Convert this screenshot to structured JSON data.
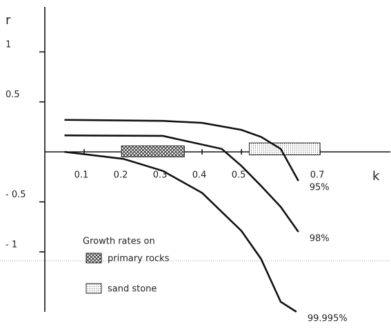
{
  "chart_data": {
    "type": "line",
    "xlabel": "k",
    "ylabel": "r",
    "xlim": [
      0,
      0.87
    ],
    "ylim": [
      -1.6,
      1.45
    ],
    "xticks": [
      0.1,
      0.2,
      0.3,
      0.4,
      0.5,
      0.7
    ],
    "yticks": [
      1,
      0.5,
      {
        "value": -0.5,
        "label": "- 0.5"
      },
      {
        "value": -1,
        "label": "- 1"
      }
    ],
    "series": [
      {
        "name": "95%",
        "color": "#111111",
        "x": [
          0.05,
          0.3,
          0.4,
          0.5,
          0.55,
          0.6,
          0.645
        ],
        "values": [
          0.32,
          0.31,
          0.29,
          0.22,
          0.15,
          0.03,
          -0.29
        ]
      },
      {
        "name": "98%",
        "color": "#111111",
        "x": [
          0.05,
          0.3,
          0.45,
          0.5,
          0.55,
          0.6,
          0.645
        ],
        "values": [
          0.165,
          0.16,
          0.03,
          -0.14,
          -0.34,
          -0.55,
          -0.8
        ]
      },
      {
        "name": "99.995%",
        "color": "#111111",
        "x": [
          0.05,
          0.2,
          0.3,
          0.4,
          0.5,
          0.55,
          0.6,
          0.64
        ],
        "values": [
          0,
          -0.07,
          -0.19,
          -0.41,
          -0.79,
          -1.07,
          -1.5,
          -1.6
        ]
      }
    ],
    "legend_title": "Growth rates on",
    "bands": [
      {
        "name": "primary rocks",
        "xrange": [
          0.195,
          0.355
        ],
        "yrange": [
          -0.05,
          0.06
        ]
      },
      {
        "name": "sand stone",
        "xrange": [
          0.52,
          0.7
        ],
        "yrange": [
          -0.03,
          0.09
        ]
      }
    ]
  }
}
